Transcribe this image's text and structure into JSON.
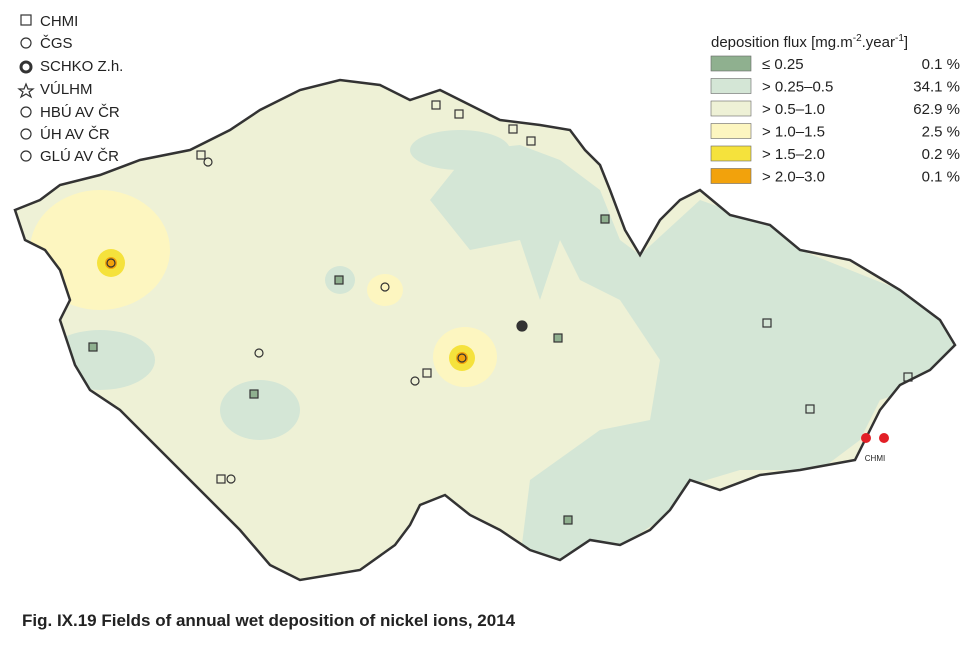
{
  "station_legend": [
    "CHMI",
    "ČGS",
    "SCHKO Z.h.",
    "VÚLHM",
    "HBÚ AV ČR",
    "ÚH AV ČR",
    "GLÚ AV ČR"
  ],
  "legend": {
    "title": "deposition flux [mg.m",
    "title_sup1": "-2",
    "title_mid": ".year",
    "title_sup2": "-1",
    "title_end": "]",
    "classes": [
      {
        "label": "≤ 0.25",
        "share": "0.1 %",
        "color": "#8fb08f"
      },
      {
        "label": "> 0.25–0.5",
        "share": "34.1 %",
        "color": "#d4e6d6"
      },
      {
        "label": "> 0.5–1.0",
        "share": "62.9 %",
        "color": "#eef1d6"
      },
      {
        "label": "> 1.0–1.5",
        "share": "2.5 %",
        "color": "#fdf6c0"
      },
      {
        "label": "> 1.5–2.0",
        "share": "0.2 %",
        "color": "#f5e23c"
      },
      {
        "label": "> 2.0–3.0",
        "share": "0.1 %",
        "color": "#f2a20c"
      }
    ]
  },
  "logo": "CHMI",
  "caption": "Fig. IX.19  Fields of annual wet deposition of nickel ions, 2014"
}
